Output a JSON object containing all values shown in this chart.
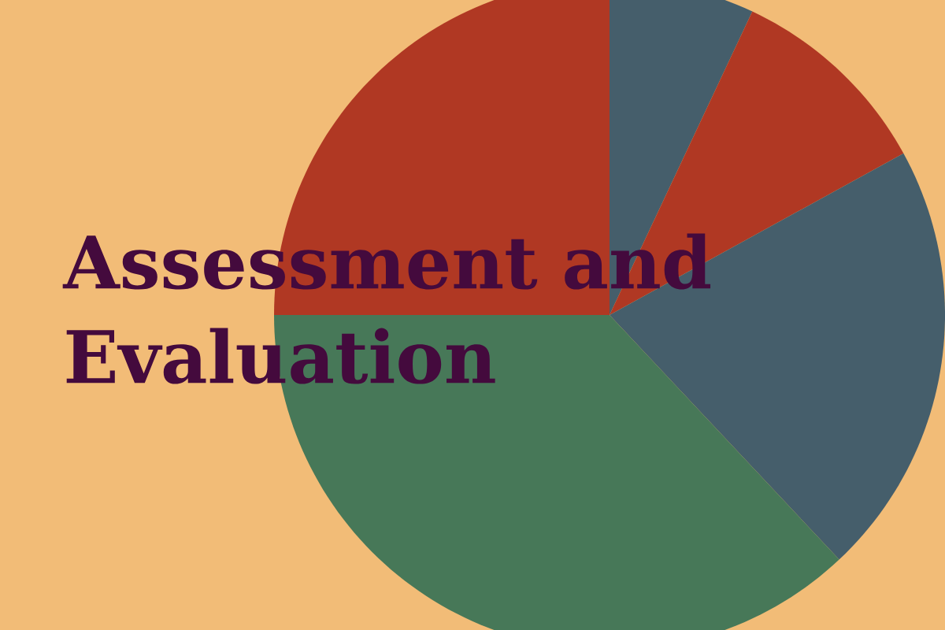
{
  "chart_data": {
    "type": "pie",
    "title": "Assessment and Evaluation",
    "categories": [
      null,
      null,
      null,
      null,
      null
    ],
    "values": [
      7,
      10,
      21,
      37,
      25
    ],
    "colors": [
      "#455e6b",
      "#b03823",
      "#455e6b",
      "#477858",
      "#b03823"
    ]
  }
}
